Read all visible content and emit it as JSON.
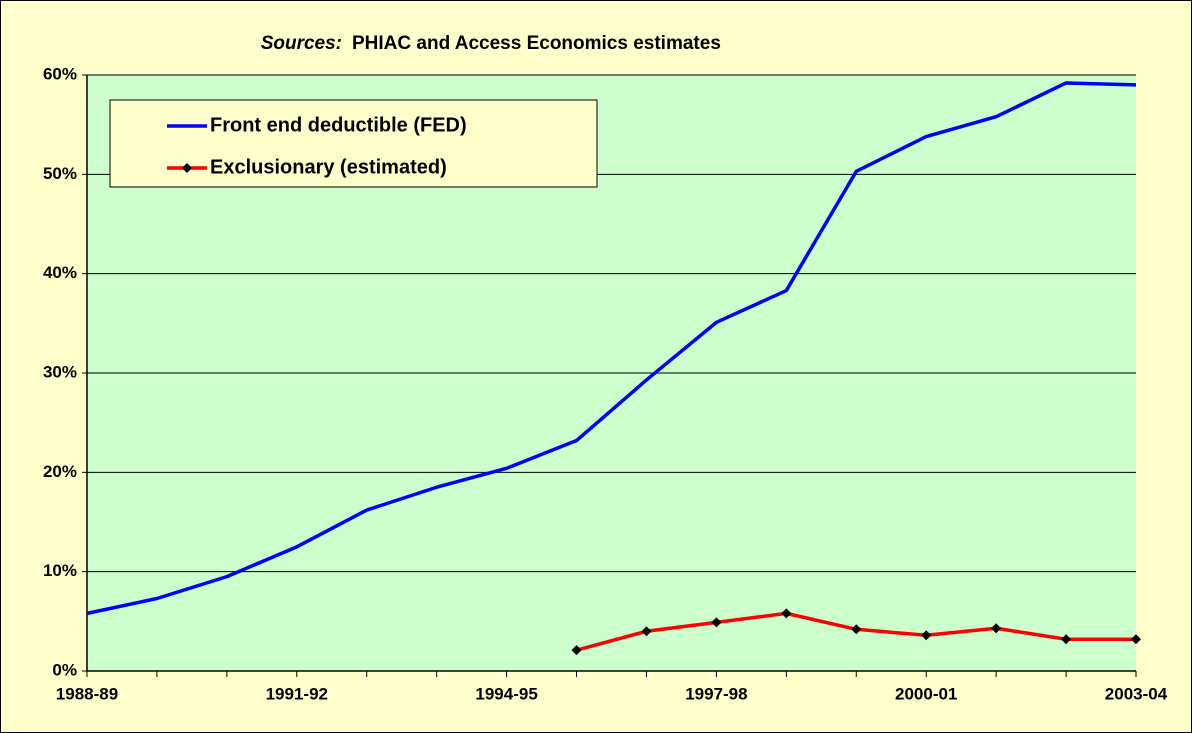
{
  "chart_data": {
    "type": "line",
    "title_prefix": "Sources:",
    "title": "PHIAC and Access Economics estimates",
    "categories": [
      "1988-89",
      null,
      null,
      "1991-92",
      null,
      null,
      "1994-95",
      null,
      null,
      "1997-98",
      null,
      null,
      "2000-01",
      null,
      null,
      "2003-04"
    ],
    "series": [
      {
        "name": "Front end deductible (FED)",
        "color": "#0000ff",
        "marker": false,
        "values": [
          5.8,
          7.3,
          9.5,
          12.5,
          16.2,
          18.5,
          20.4,
          23.2,
          29.3,
          35.1,
          38.3,
          50.3,
          53.8,
          55.8,
          59.2,
          59.0
        ]
      },
      {
        "name": "Exclusionary (estimated)",
        "color": "#ff0000",
        "marker": true,
        "values": [
          null,
          null,
          null,
          null,
          null,
          null,
          null,
          2.1,
          4.0,
          4.9,
          5.8,
          4.2,
          3.6,
          4.3,
          3.2,
          3.2
        ]
      }
    ],
    "ylim": [
      0,
      60
    ],
    "yticks": [
      {
        "value": 0,
        "label": "0%"
      },
      {
        "value": 10,
        "label": "10%"
      },
      {
        "value": 20,
        "label": "20%"
      },
      {
        "value": 30,
        "label": "30%"
      },
      {
        "value": 40,
        "label": "40%"
      },
      {
        "value": 50,
        "label": "50%"
      },
      {
        "value": 60,
        "label": "60%"
      }
    ],
    "grid": true,
    "legend": "top-left",
    "background": "#ffffcc",
    "plot_background": "#ccffcc"
  }
}
